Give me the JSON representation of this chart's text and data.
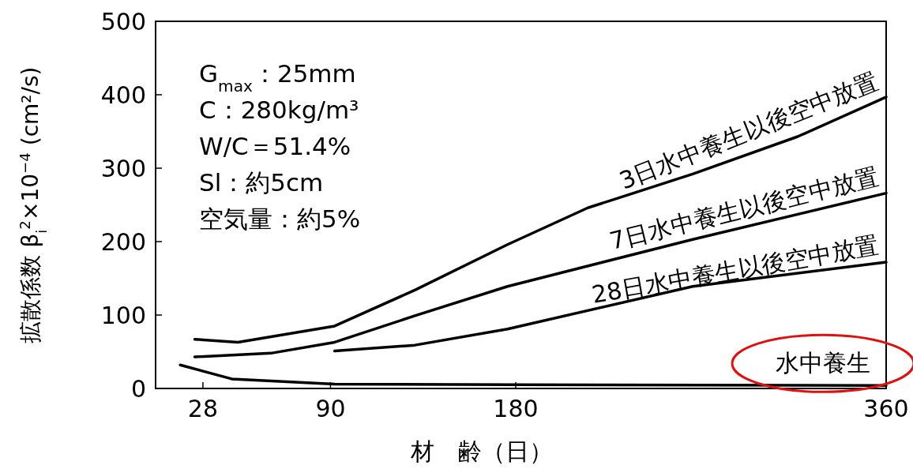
{
  "chart_data": {
    "type": "line",
    "xlabel": "材　齢（日）",
    "ylabel": "拡散係数 β$_{i}$$^{2}$×10$^{−4}$ (cm²/s)",
    "xlim": [
      5,
      360
    ],
    "ylim": [
      0,
      500
    ],
    "xticks": [
      28,
      90,
      180,
      360
    ],
    "yticks": [
      0,
      100,
      200,
      300,
      400,
      500
    ],
    "grid": false,
    "legend": false,
    "marker": "none",
    "line_style": "solid",
    "annotations": [
      "G$_{max}$：25mm",
      "C：280kg/m³",
      "W/C＝51.4%",
      "Sl：約5cm",
      "空気量：約5%"
    ],
    "series": [
      {
        "name": "3日水中養生以後空中放置",
        "color": "#000000",
        "x": [
          24,
          45,
          92,
          131,
          176,
          215,
          266,
          317,
          360
        ],
        "values": [
          67,
          63,
          85,
          134,
          196,
          246,
          292,
          343,
          397
        ]
      },
      {
        "name": "7日水中養生以後空中放置",
        "color": "#000000",
        "x": [
          24,
          61,
          92,
          131,
          176,
          266,
          360
        ],
        "values": [
          43,
          48,
          63,
          99,
          139,
          203,
          266
        ]
      },
      {
        "name": "28日水中養生以後空中放置",
        "color": "#000000",
        "x": [
          92,
          131,
          176,
          266,
          360
        ],
        "values": [
          51,
          59,
          81,
          139,
          172
        ]
      },
      {
        "name": "水中養生",
        "color": "#000000",
        "x": [
          17,
          42,
          92,
          180,
          360
        ],
        "values": [
          32,
          13,
          6,
          5,
          4
        ]
      }
    ]
  }
}
